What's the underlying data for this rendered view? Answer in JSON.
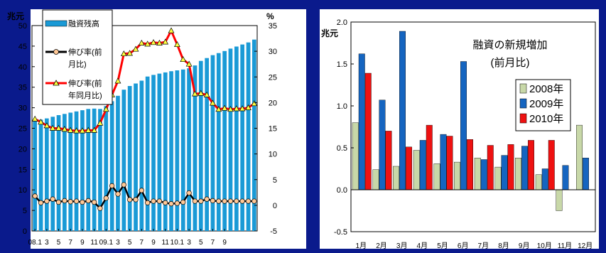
{
  "chart_data": [
    {
      "type": "bar+line",
      "left_unit": "兆元",
      "right_unit": "%",
      "ylim_left": [
        0,
        50
      ],
      "yticks_left": [
        "0",
        "5",
        "10",
        "15",
        "20",
        "25",
        "30",
        "35",
        "40",
        "45",
        "50"
      ],
      "ylim_right": [
        -5,
        35
      ],
      "yticks_right": [
        "-5",
        "0",
        "5",
        "10",
        "15",
        "20",
        "25",
        "30",
        "35"
      ],
      "x_tick_labels": [
        "08.1",
        "3",
        "5",
        "7",
        "9",
        "11",
        "09.1",
        "3",
        "5",
        "7",
        "9",
        "11",
        "10.1",
        "3",
        "5",
        "7",
        "9"
      ],
      "legend": [
        "融資残高",
        "伸び率(前月比)",
        "伸び率(前年同月比)"
      ],
      "colors": {
        "bar": "#1a9ad6",
        "mom": "#000000",
        "yoy": "#ff0000",
        "marker_fill": "#ffc896",
        "tri_fill": "#ffff40"
      },
      "series": [
        {
          "name": "融資残高",
          "axis": "left",
          "values": [
            26.8,
            27.1,
            27.4,
            27.8,
            28.2,
            28.5,
            28.8,
            29.1,
            29.4,
            29.7,
            29.8,
            29.7,
            30.4,
            31.6,
            32.9,
            34.4,
            35.3,
            35.9,
            36.6,
            37.6,
            38.0,
            38.3,
            38.6,
            38.9,
            39.1,
            39.3,
            39.6,
            40.3,
            41.4,
            42.1,
            42.8,
            43.3,
            43.8,
            44.4,
            44.9,
            45.4,
            45.9,
            46.6
          ]
        },
        {
          "name": "伸び率(前月比)",
          "axis": "right",
          "values": [
            1.8,
            0.5,
            0.8,
            1.2,
            0.6,
            0.9,
            0.7,
            0.8,
            0.6,
            0.9,
            0.6,
            -0.6,
            1.4,
            3.8,
            2.2,
            4.0,
            1.1,
            1.1,
            2.9,
            0.5,
            0.8,
            0.8,
            0.5,
            0.3,
            0.4,
            0.6,
            2.4,
            0.8,
            0.8,
            1.2,
            0.9,
            0.8,
            0.8,
            0.8,
            0.8,
            0.8,
            0.8,
            0.8
          ]
        },
        {
          "name": "伸び率(前年同月比)",
          "axis": "right",
          "values": [
            16.8,
            16.2,
            15.5,
            15.0,
            15.0,
            14.8,
            14.6,
            14.5,
            14.5,
            14.6,
            14.6,
            16.0,
            18.7,
            21.5,
            24.2,
            29.5,
            29.6,
            30.4,
            31.6,
            31.4,
            31.7,
            31.6,
            31.8,
            34.0,
            31.3,
            28.4,
            27.5,
            21.7,
            21.8,
            21.5,
            19.9,
            18.7,
            18.9,
            18.7,
            18.8,
            18.8,
            19.0,
            19.8
          ]
        }
      ]
    },
    {
      "type": "bar",
      "title": "融資の新規増加",
      "subtitle": "(前月比)",
      "ylabel": "兆元",
      "ylim": [
        -0.5,
        2.0
      ],
      "yticks": [
        "-0.5",
        "0.0",
        "0.5",
        "1.0",
        "1.5",
        "2.0"
      ],
      "categories": [
        "1月",
        "2月",
        "3月",
        "4月",
        "5月",
        "6月",
        "7月",
        "8月",
        "9月",
        "10月",
        "11月",
        "12月"
      ],
      "series": [
        {
          "name": "2008年",
          "color": "#c8d8a8",
          "values": [
            0.8,
            0.24,
            0.28,
            0.47,
            0.31,
            0.33,
            0.38,
            0.27,
            0.38,
            0.18,
            -0.25,
            0.77
          ]
        },
        {
          "name": "2009年",
          "color": "#1565c0",
          "values": [
            1.62,
            1.07,
            1.89,
            0.59,
            0.66,
            1.53,
            0.36,
            0.41,
            0.52,
            0.25,
            0.29,
            0.38
          ]
        },
        {
          "name": "2010年",
          "color": "#ee1111",
          "values": [
            1.39,
            0.7,
            0.51,
            0.77,
            0.64,
            0.6,
            0.53,
            0.54,
            0.59,
            0.59,
            null,
            null
          ]
        }
      ]
    }
  ]
}
